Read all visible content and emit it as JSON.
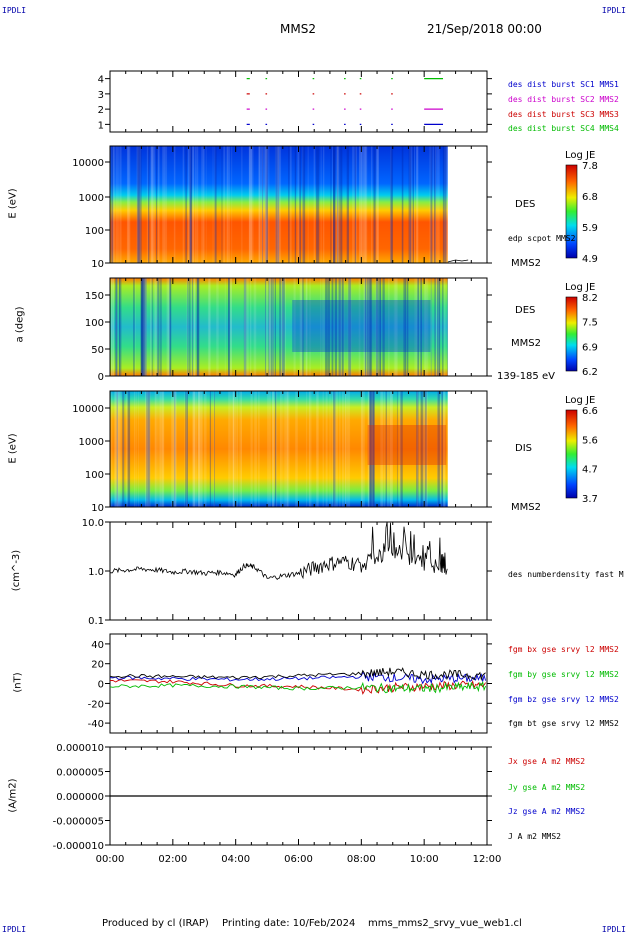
{
  "header": {
    "corner_tl": "IPDLI",
    "corner_tr": "IPDLI",
    "corner_bl": "IPDLI",
    "corner_br": "IPDLI",
    "spacecraft": "MMS2",
    "datetime": "21/Sep/2018 00:00"
  },
  "footer": {
    "produced": "Produced by cl (IRAP)",
    "printing": "Printing date: 10/Feb/2024",
    "file": "mms_mms2_srvy_vue_web1.cl"
  },
  "time_axis": {
    "ticks": [
      "00:00",
      "02:00",
      "04:00",
      "06:00",
      "08:00",
      "10:00",
      "12:00"
    ],
    "range_hours": [
      0,
      12
    ]
  },
  "colors": {
    "mms1": "#0000cc",
    "mms2": "#cc00cc",
    "mms3": "#cc0000",
    "mms4": "#00bb00",
    "black": "#000000"
  },
  "chart_data": [
    {
      "type": "line",
      "panel": "burst-availability",
      "ylim": [
        0.5,
        4.5
      ],
      "yticks": [
        "4",
        "3",
        "2",
        "1"
      ],
      "series": [
        {
          "name": "des dist burst SC1 MMS1",
          "level": 1,
          "intervals": [
            [
              4.35,
              4.45
            ],
            [
              4.95,
              5.0
            ],
            [
              6.45,
              6.5
            ],
            [
              7.45,
              7.5
            ],
            [
              7.95,
              8.0
            ],
            [
              8.95,
              9.0
            ],
            [
              10.0,
              10.6
            ]
          ]
        },
        {
          "name": "des dist burst SC2 MMS2",
          "level": 2,
          "intervals": [
            [
              4.35,
              4.45
            ],
            [
              4.95,
              5.0
            ],
            [
              6.45,
              6.5
            ],
            [
              7.45,
              7.5
            ],
            [
              7.95,
              8.0
            ],
            [
              8.95,
              9.0
            ],
            [
              10.0,
              10.6
            ]
          ]
        },
        {
          "name": "des dist burst SC3 MMS3",
          "level": 3,
          "intervals": [
            [
              4.35,
              4.45
            ],
            [
              4.95,
              5.0
            ],
            [
              6.45,
              6.5
            ],
            [
              7.45,
              7.5
            ],
            [
              7.95,
              8.0
            ],
            [
              8.95,
              9.0
            ]
          ]
        },
        {
          "name": "des dist burst SC4 MMS4",
          "level": 4,
          "intervals": [
            [
              4.35,
              4.45
            ],
            [
              4.95,
              5.0
            ],
            [
              6.45,
              6.5
            ],
            [
              7.45,
              7.5
            ],
            [
              7.95,
              8.0
            ],
            [
              8.95,
              9.0
            ],
            [
              10.0,
              10.6
            ]
          ]
        }
      ]
    },
    {
      "type": "heatmap",
      "panel": "des-energy",
      "ylabel": "E (eV)",
      "yticks": [
        "10000",
        "1000",
        "100",
        "10"
      ],
      "instrument": "DES",
      "spacecraft": "MMS2",
      "note": "edp scpot MMS2",
      "colorbar": {
        "title": "Log JE",
        "ticks": [
          "7.8",
          "6.8",
          "5.9",
          "4.9"
        ]
      },
      "data_end_hours": 10.75
    },
    {
      "type": "heatmap",
      "panel": "des-pitch",
      "ylabel": "a (deg)",
      "yticks": [
        "150",
        "100",
        "50",
        "0"
      ],
      "instrument": "DES",
      "spacecraft": "MMS2",
      "energy_range": "139-185 eV",
      "colorbar": {
        "title": "Log JE",
        "ticks": [
          "8.2",
          "7.5",
          "6.9",
          "6.2"
        ]
      },
      "data_end_hours": 10.75
    },
    {
      "type": "heatmap",
      "panel": "dis-energy",
      "ylabel": "E (eV)",
      "yticks": [
        "10000",
        "1000",
        "100",
        "10"
      ],
      "instrument": "DIS",
      "spacecraft": "MMS2",
      "colorbar": {
        "title": "Log JE",
        "ticks": [
          "6.6",
          "5.6",
          "4.7",
          "3.7"
        ]
      },
      "data_end_hours": 10.75
    },
    {
      "type": "line",
      "panel": "density",
      "ylabel": "(cm^-3)",
      "yticks": [
        "10.0",
        "1.0",
        "0.1"
      ],
      "series": [
        {
          "name": "des numberdensity fast M",
          "x": [
            0,
            0.5,
            1,
            1.5,
            2,
            2.5,
            3,
            3.5,
            4,
            4.3,
            4.6,
            5,
            5.5,
            6,
            6.5,
            7,
            7.5,
            8,
            8.5,
            9,
            9.5,
            10,
            10.5,
            10.75
          ],
          "y": [
            1.0,
            1.05,
            1.1,
            1.05,
            0.95,
            1.0,
            0.9,
            0.95,
            0.85,
            1.3,
            1.2,
            0.7,
            0.8,
            0.9,
            1.2,
            1.5,
            1.6,
            1.4,
            2.0,
            2.4,
            1.8,
            1.5,
            1.2,
            1.1
          ]
        }
      ]
    },
    {
      "type": "line",
      "panel": "magnetic-field",
      "ylabel": "(nT)",
      "ylim": [
        -50,
        50
      ],
      "yticks": [
        "40",
        "20",
        "0",
        "-20",
        "-40"
      ],
      "series": [
        {
          "name": "fgm bx gse srvy l2 MMS2",
          "color": "#cc0000",
          "x": [
            0,
            2,
            4,
            6,
            8,
            9,
            10,
            11,
            12
          ],
          "y": [
            3,
            2,
            -2,
            -3,
            -6,
            -4,
            -3,
            -2,
            -2
          ]
        },
        {
          "name": "fgm by gse srvy l2 MMS2",
          "color": "#00bb00",
          "x": [
            0,
            2,
            4,
            6,
            8,
            9,
            10,
            11,
            12
          ],
          "y": [
            -3,
            -2,
            -3,
            -5,
            -4,
            -5,
            -5,
            -4,
            -3
          ]
        },
        {
          "name": "fgm bz gse srvy l2 MMS2",
          "color": "#0000cc",
          "x": [
            0,
            2,
            4,
            6,
            8,
            9,
            10,
            11,
            12
          ],
          "y": [
            6,
            5,
            4,
            5,
            7,
            6,
            4,
            5,
            5
          ]
        },
        {
          "name": "fgm bt gse srvy l2 MMS2",
          "color": "#000000",
          "x": [
            0,
            2,
            4,
            6,
            8,
            9,
            10,
            11,
            12
          ],
          "y": [
            8,
            7,
            6,
            8,
            10,
            12,
            9,
            9,
            8
          ]
        }
      ]
    },
    {
      "type": "line",
      "panel": "current-density",
      "ylabel": "(A/m2)",
      "ylim": [
        -1e-05,
        1e-05
      ],
      "yticks": [
        "0.000010",
        "0.000005",
        "0.000000",
        "-0.000005",
        "-0.000010"
      ],
      "series": [
        {
          "name": "Jx gse A m2 MMS2",
          "color": "#cc0000"
        },
        {
          "name": "Jy gse A m2 MMS2",
          "color": "#00bb00"
        },
        {
          "name": "Jz gse A m2 MMS2",
          "color": "#0000cc"
        },
        {
          "name": "J A m2 MMS2",
          "color": "#000000",
          "x": [
            0,
            12
          ],
          "y": [
            0,
            0
          ]
        }
      ]
    }
  ]
}
